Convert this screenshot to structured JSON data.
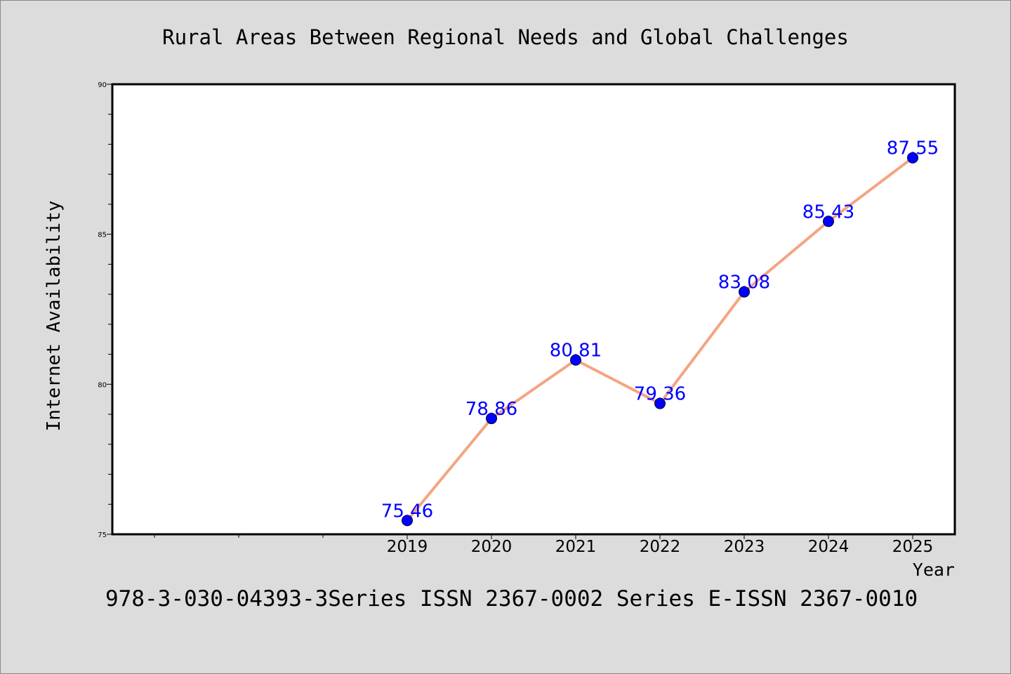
{
  "chart_data": {
    "type": "line",
    "title": "Rural Areas Between Regional Needs and Global Challenges",
    "xlabel": "Year",
    "ylabel": "Internet Availability",
    "footer": "978-3-030-04393-3Series ISSN 2367-0002 Series E-ISSN 2367-0010",
    "x": [
      2019,
      2020,
      2021,
      2022,
      2023,
      2024,
      2025
    ],
    "x_tick_labels": [
      "2019",
      "2020",
      "2021",
      "2022",
      "2023",
      "2024",
      "2025"
    ],
    "xlim": [
      2015.5,
      2025.5
    ],
    "ylim": [
      75,
      90
    ],
    "y_ticks": [
      75,
      80,
      85,
      90
    ],
    "y_tick_labels": [
      "75",
      "80",
      "85",
      "90"
    ],
    "y_minor_step": 1,
    "series": [
      {
        "values": [
          75.46,
          78.86,
          80.81,
          79.36,
          83.08,
          85.43,
          87.55
        ],
        "data_labels": [
          "75.46",
          "78.86",
          "80.81",
          "79.36",
          "83.08",
          "85.43",
          "87.55"
        ],
        "line_color": "#f4a582",
        "marker_color": "#0000ff",
        "label_color": "#0000ff"
      }
    ],
    "grid": false,
    "legend": "none",
    "background_color": "#dcdcdc",
    "plot_background_color": "#ffffff"
  }
}
